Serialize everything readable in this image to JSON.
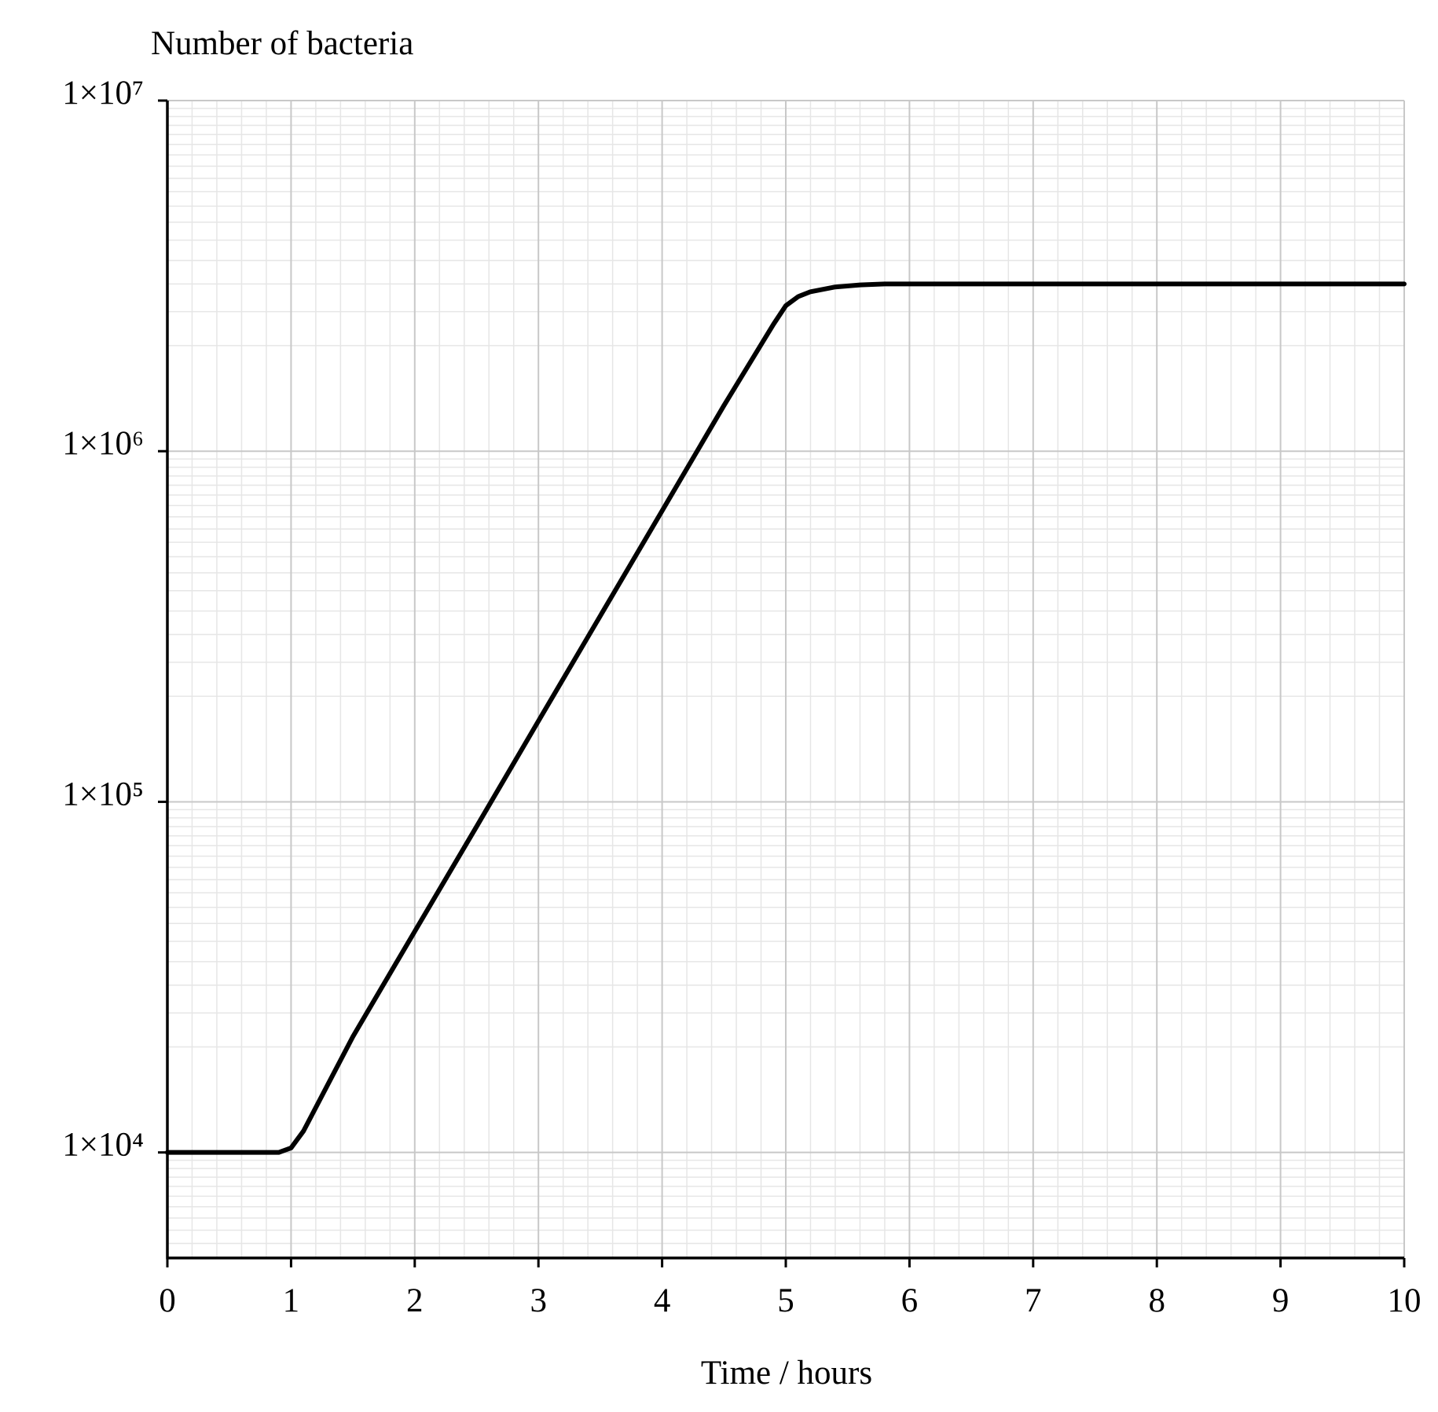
{
  "chart_data": {
    "type": "line",
    "title": "Number of bacteria",
    "x_label": "Time / hours",
    "x": [
      0,
      0.5,
      0.9,
      1,
      1.1,
      1.5,
      2,
      2.5,
      3,
      3.5,
      4,
      4.5,
      4.9,
      5,
      5.1,
      5.2,
      5.4,
      5.6,
      5.8,
      6,
      7,
      8,
      9,
      10
    ],
    "series": [
      {
        "color": "#000000",
        "values": [
          10000,
          10000,
          10000,
          10300,
          11500,
          21400,
          42700,
          85000,
          170000,
          339000,
          676000,
          1350000,
          2300000,
          2600000,
          2760000,
          2850000,
          2940000,
          2980000,
          3000000,
          3000000,
          3000000,
          3000000,
          3000000,
          3000000
        ]
      }
    ],
    "xlim": [
      0,
      10
    ],
    "xticks": [
      0,
      1,
      2,
      3,
      4,
      5,
      6,
      7,
      8,
      9,
      10
    ],
    "ylim": [
      5000,
      10000000
    ],
    "yticks": [
      {
        "value": 10000,
        "label": "1×10⁴"
      },
      {
        "value": 100000,
        "label": "1×10⁵"
      },
      {
        "value": 1000000,
        "label": "1×10⁶"
      },
      {
        "value": 10000000,
        "label": "1×10⁷"
      }
    ],
    "y_log": true,
    "grid": true
  }
}
